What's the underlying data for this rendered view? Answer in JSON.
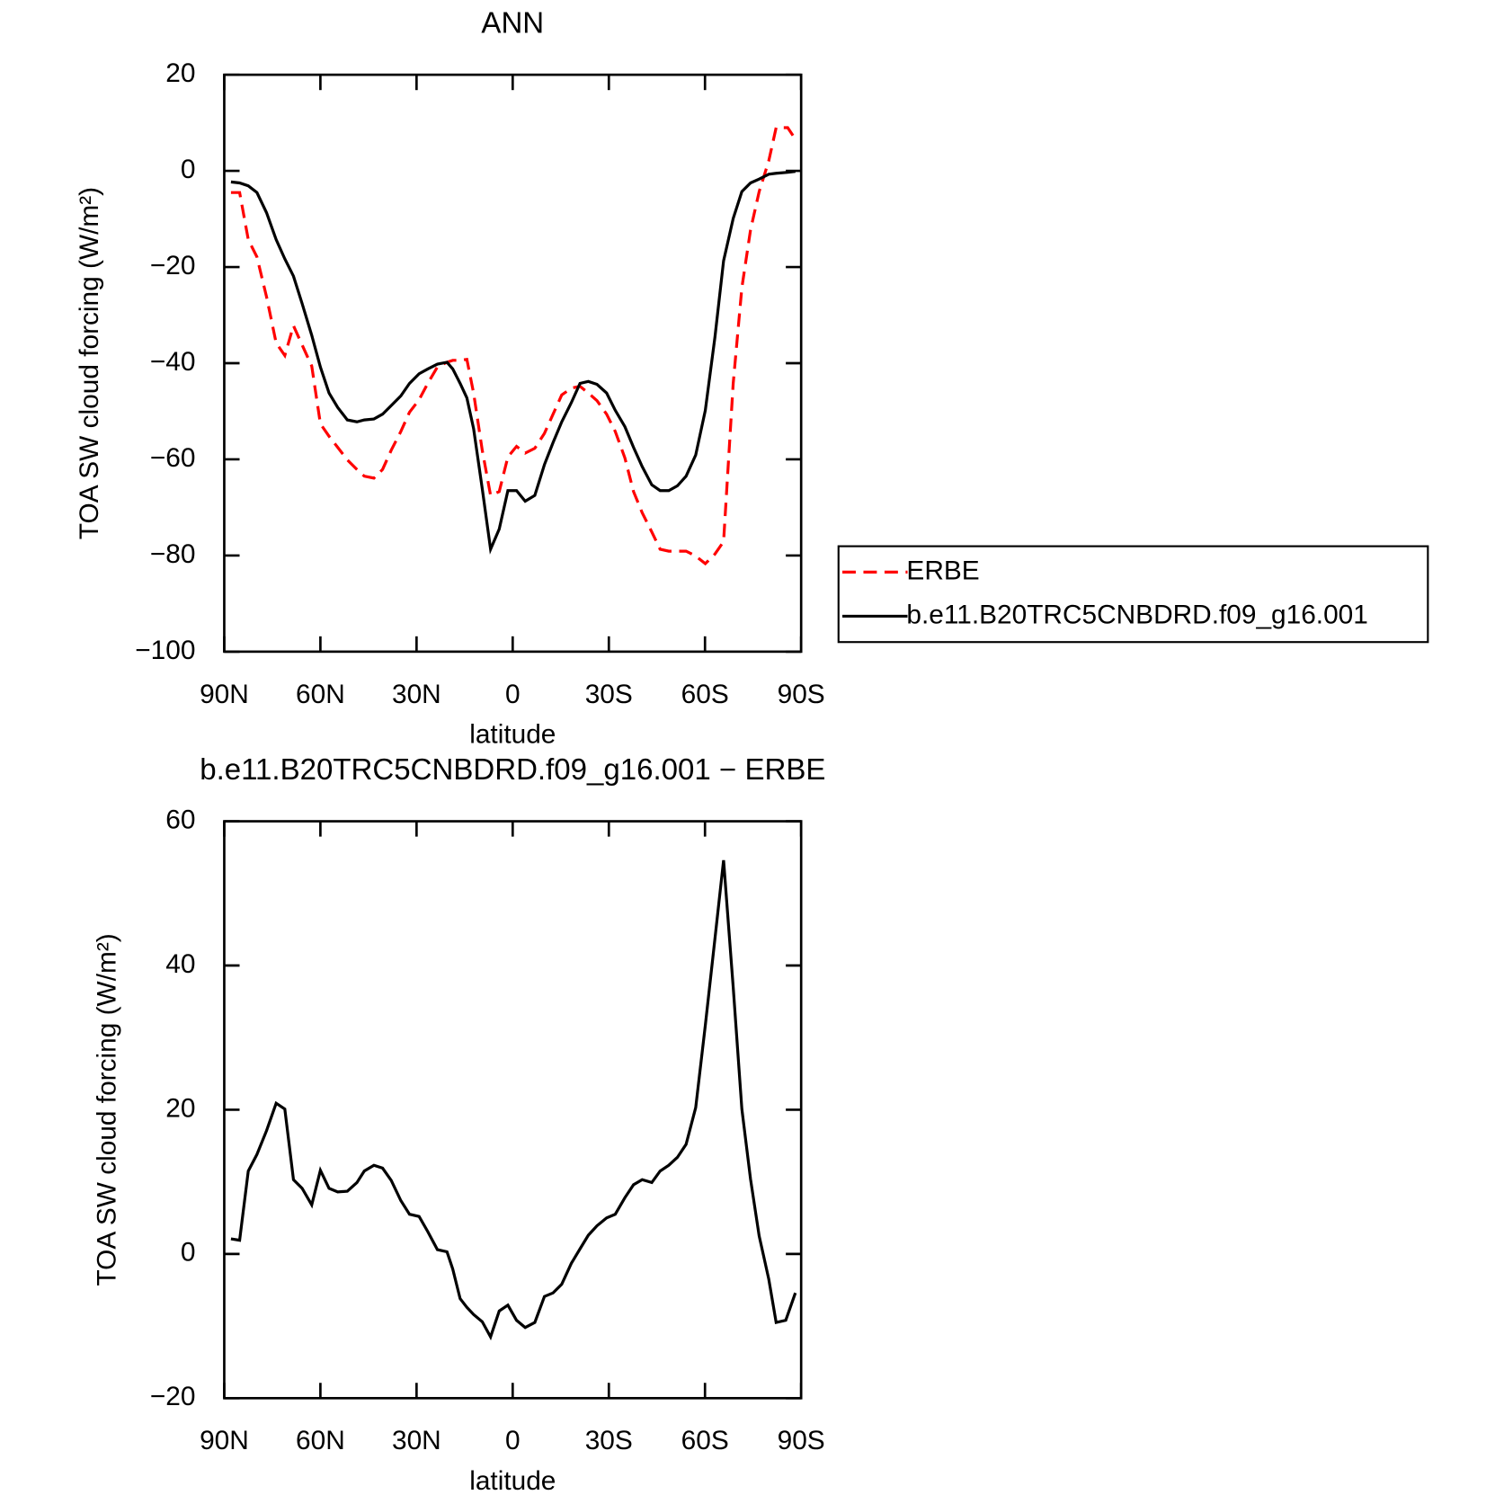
{
  "chart_data": [
    {
      "type": "line",
      "title": "ANN",
      "xlabel": "latitude",
      "ylabel": "TOA SW cloud forcing (W/m²)",
      "x": [
        87.9,
        85.2,
        82.5,
        79.8,
        76.8,
        73.8,
        71.1,
        68.4,
        65.7,
        62.7,
        60.0,
        57.3,
        54.6,
        51.6,
        48.6,
        46.3,
        43.3,
        40.6,
        37.9,
        34.9,
        32.2,
        29.2,
        26.5,
        23.5,
        20.5,
        18.7,
        16.4,
        14.3,
        12.2,
        9.5,
        6.9,
        4.2,
        1.5,
        -1.2,
        -3.9,
        -6.9,
        -9.9,
        -12.6,
        -15.3,
        -18.3,
        -21.0,
        -23.6,
        -26.3,
        -29.3,
        -32.0,
        -35.0,
        -37.7,
        -40.4,
        -43.4,
        -46.0,
        -48.7,
        -51.4,
        -54.1,
        -57.1,
        -60.1,
        -63.1,
        -65.8,
        -68.8,
        -71.5,
        -74.2,
        -76.9,
        -79.9,
        -82.2,
        -85.8,
        -88.2
      ],
      "series": [
        {
          "name": "ERBE",
          "color": "#ff0000",
          "dashed": true,
          "values": [
            -4.5,
            -4.5,
            -14.3,
            -17.9,
            -26.2,
            -35.8,
            -38.4,
            -32.2,
            -36.2,
            -40.6,
            -52.6,
            -55.2,
            -57.5,
            -60.1,
            -62.1,
            -63.5,
            -63.9,
            -62.1,
            -58.1,
            -54.2,
            -50.2,
            -47.6,
            -44.2,
            -40.8,
            -39.8,
            -39.4,
            -39.4,
            -39.2,
            -46.2,
            -58.1,
            -67.5,
            -66.7,
            -59.5,
            -57.3,
            -58.7,
            -57.7,
            -54.6,
            -50.6,
            -46.6,
            -45.2,
            -44.8,
            -46.2,
            -47.8,
            -50.6,
            -54.2,
            -59.7,
            -66.7,
            -71.1,
            -75.1,
            -78.7,
            -79.1,
            -79.1,
            -79.1,
            -80.1,
            -81.7,
            -79.7,
            -77.1,
            -44.2,
            -24.3,
            -12.3,
            -4.3,
            2.1,
            9.0,
            9.0,
            6.6
          ]
        },
        {
          "name": "b.e11.B20TRC5CNBDRD.f09_g16.001",
          "color": "#000000",
          "dashed": false,
          "values": [
            -2.3,
            -2.5,
            -3.1,
            -4.5,
            -8.7,
            -14.3,
            -18.3,
            -21.9,
            -27.6,
            -34.2,
            -40.8,
            -46.2,
            -49.2,
            -51.8,
            -52.2,
            -51.8,
            -51.6,
            -50.6,
            -48.8,
            -46.8,
            -44.2,
            -42.2,
            -41.2,
            -40.2,
            -39.8,
            -41.2,
            -44.2,
            -47.2,
            -53.6,
            -66.1,
            -78.7,
            -74.5,
            -66.5,
            -66.5,
            -68.7,
            -67.5,
            -61.1,
            -56.5,
            -52.2,
            -48.2,
            -44.2,
            -43.8,
            -44.4,
            -46.2,
            -49.8,
            -53.2,
            -57.5,
            -61.5,
            -65.3,
            -66.5,
            -66.5,
            -65.5,
            -63.5,
            -59.1,
            -49.8,
            -34.6,
            -18.7,
            -9.9,
            -4.3,
            -2.5,
            -1.7,
            -0.7,
            -0.5,
            -0.3,
            -0.1
          ]
        }
      ],
      "xlim": [
        90,
        -90
      ],
      "xticks": [
        {
          "value": 90,
          "label": "90N"
        },
        {
          "value": 60,
          "label": "60N"
        },
        {
          "value": 30,
          "label": "30N"
        },
        0,
        {
          "value": -30,
          "label": "30S"
        },
        {
          "value": -60,
          "label": "60S"
        },
        {
          "value": -90,
          "label": "90S"
        }
      ],
      "ylim": [
        -100,
        20
      ],
      "yticks": [
        {
          "value": -100,
          "label": "−100"
        },
        {
          "value": -80,
          "label": "−80"
        },
        {
          "value": -60,
          "label": "−60"
        },
        {
          "value": -40,
          "label": "−40"
        },
        {
          "value": -20,
          "label": "−20"
        },
        0,
        20
      ],
      "legend": "outside right"
    },
    {
      "type": "line",
      "title": "b.e11.B20TRC5CNBDRD.f09_g16.001 − ERBE",
      "xlabel": "latitude",
      "ylabel": "TOA SW cloud forcing (W/m²)",
      "x": [
        87.9,
        85.2,
        82.5,
        79.8,
        76.8,
        73.8,
        71.1,
        68.4,
        65.7,
        62.7,
        60.0,
        57.3,
        54.6,
        51.6,
        48.6,
        46.3,
        43.3,
        40.6,
        37.9,
        34.9,
        32.2,
        29.2,
        26.5,
        23.5,
        20.5,
        18.7,
        16.4,
        14.3,
        12.2,
        9.5,
        6.9,
        4.2,
        1.5,
        -1.2,
        -3.9,
        -6.9,
        -9.9,
        -12.6,
        -15.3,
        -18.3,
        -21.0,
        -23.6,
        -26.3,
        -29.3,
        -32.0,
        -35.0,
        -37.7,
        -40.4,
        -43.4,
        -46.0,
        -48.7,
        -51.4,
        -54.1,
        -57.1,
        -60.1,
        -63.1,
        -65.8,
        -68.8,
        -71.5,
        -74.2,
        -76.9,
        -79.9,
        -82.2,
        -85.2,
        -88.2
      ],
      "color": "#000000",
      "values": [
        2.1,
        1.9,
        11.5,
        13.8,
        17.1,
        20.9,
        20.1,
        10.3,
        9.1,
        6.8,
        11.6,
        9.1,
        8.6,
        8.7,
        9.9,
        11.5,
        12.3,
        11.9,
        10.2,
        7.4,
        5.5,
        5.2,
        3.1,
        0.6,
        0.3,
        -2.1,
        -6.2,
        -7.4,
        -8.4,
        -9.4,
        -11.5,
        -7.9,
        -7.1,
        -9.2,
        -10.2,
        -9.5,
        -5.9,
        -5.4,
        -4.2,
        -1.3,
        0.7,
        2.6,
        3.9,
        5.0,
        5.5,
        7.8,
        9.6,
        10.3,
        9.9,
        11.5,
        12.3,
        13.4,
        15.2,
        20.3,
        31.7,
        43.7,
        54.6,
        37.0,
        20.1,
        10.4,
        2.5,
        -3.5,
        -9.5,
        -9.2,
        -5.4
      ],
      "xlim": [
        90,
        -90
      ],
      "xticks": [
        {
          "value": 90,
          "label": "90N"
        },
        {
          "value": 60,
          "label": "60N"
        },
        {
          "value": 30,
          "label": "30N"
        },
        0,
        {
          "value": -30,
          "label": "30S"
        },
        {
          "value": -60,
          "label": "60S"
        },
        {
          "value": -90,
          "label": "90S"
        }
      ],
      "ylim": [
        -20,
        60
      ],
      "yticks": [
        {
          "value": -20,
          "label": "−20"
        },
        0,
        20,
        40,
        60
      ]
    }
  ]
}
